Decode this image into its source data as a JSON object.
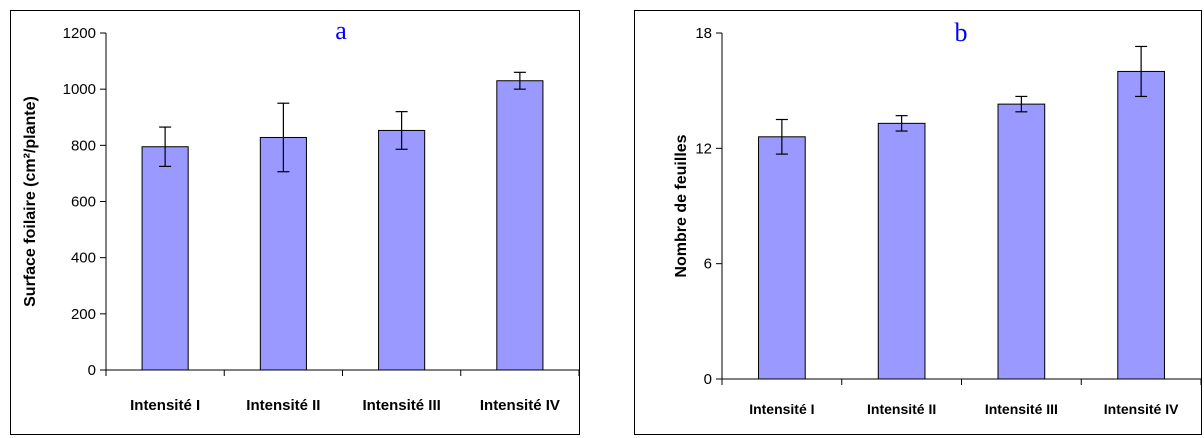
{
  "chart_data": [
    {
      "type": "bar",
      "letter": "a",
      "title": "",
      "xlabel": "",
      "ylabel": "Surface foilaire (cm²/plante)",
      "categories": [
        "Intensité I",
        "Intensité II",
        "Intensité III",
        "Intensité IV"
      ],
      "values": [
        795,
        828,
        853,
        1030
      ],
      "errors": [
        70,
        122,
        67,
        30
      ],
      "ylim": [
        0,
        1200
      ],
      "yticks": [
        0,
        200,
        400,
        600,
        800,
        1000,
        1200
      ],
      "bar_color": "#9999ff",
      "grid": false,
      "legend": "none"
    },
    {
      "type": "bar",
      "letter": "b",
      "title": "",
      "xlabel": "",
      "ylabel": "Nombre de feuilles",
      "categories": [
        "Intensité I",
        "Intensité II",
        "Intensité III",
        "Intensité IV"
      ],
      "values": [
        12.6,
        13.3,
        14.3,
        16.0
      ],
      "errors": [
        0.9,
        0.4,
        0.4,
        1.3
      ],
      "ylim": [
        0,
        18
      ],
      "yticks": [
        0,
        6,
        12,
        18
      ],
      "bar_color": "#9999ff",
      "grid": false,
      "legend": "none"
    }
  ]
}
